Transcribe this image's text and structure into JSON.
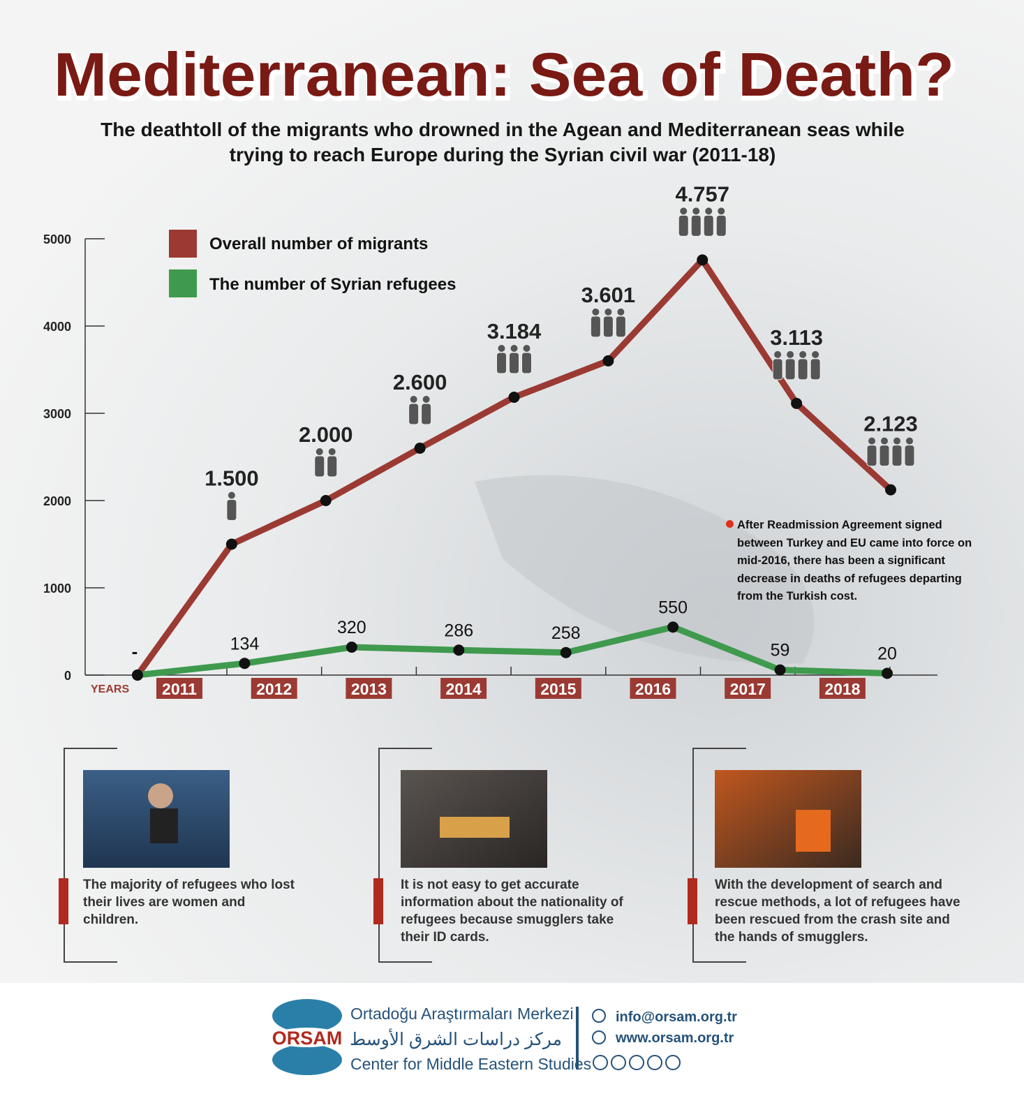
{
  "title": "Mediterranean: Sea of Death?",
  "subtitle": [
    "The deathtoll of the migrants who drowned in the Agean and Mediterranean seas while",
    "trying to reach Europe during the Syrian civil war (2011-18)"
  ],
  "chart_data": {
    "type": "line",
    "x_label": "YEARS",
    "year_labels": [
      "2011",
      "2012",
      "2013",
      "2014",
      "2015",
      "2016",
      "2017",
      "2018"
    ],
    "ylim": [
      0,
      5000
    ],
    "yticks": [
      0,
      1000,
      2000,
      3000,
      4000,
      5000
    ],
    "legend": "top-left",
    "start_label": "-",
    "series": [
      {
        "name": "Overall number of migrants",
        "color": "#9b3a33",
        "values": [
          0,
          1500,
          2000,
          2600,
          3184,
          3601,
          4757,
          3113,
          2123
        ],
        "value_labels": [
          null,
          "1.500",
          "2.000",
          "2.600",
          "3.184",
          "3.601",
          "4.757",
          "3.113",
          "2.123"
        ]
      },
      {
        "name": "The number of Syrian refugees",
        "color": "#3f9a4e",
        "values": [
          0,
          134,
          320,
          286,
          258,
          550,
          59,
          20
        ]
      }
    ],
    "annotation": "After Readmission Agreement signed between Turkey and EU came into force on mid-2016, there has been a significant decrease in deaths of refugees departing from the Turkish cost."
  },
  "panels": [
    {
      "caption": "The majority of refugees who lost their lives are women and children."
    },
    {
      "caption": "It is not easy to get accurate information about the nationality of refugees because smugglers take their ID cards."
    },
    {
      "caption": "With the development of search and rescue methods, a lot of refugees have been rescued from the crash site and the hands of smugglers."
    }
  ],
  "footer": {
    "brand": "ORSAM",
    "name_tr": "Ortadoğu Araştırmaları Merkezi",
    "name_ar": "مركز دراسات الشرق الأوسط",
    "name_en": "Center for Middle Eastern Studies",
    "email": "info@orsam.org.tr",
    "website": "www.orsam.org.tr"
  }
}
